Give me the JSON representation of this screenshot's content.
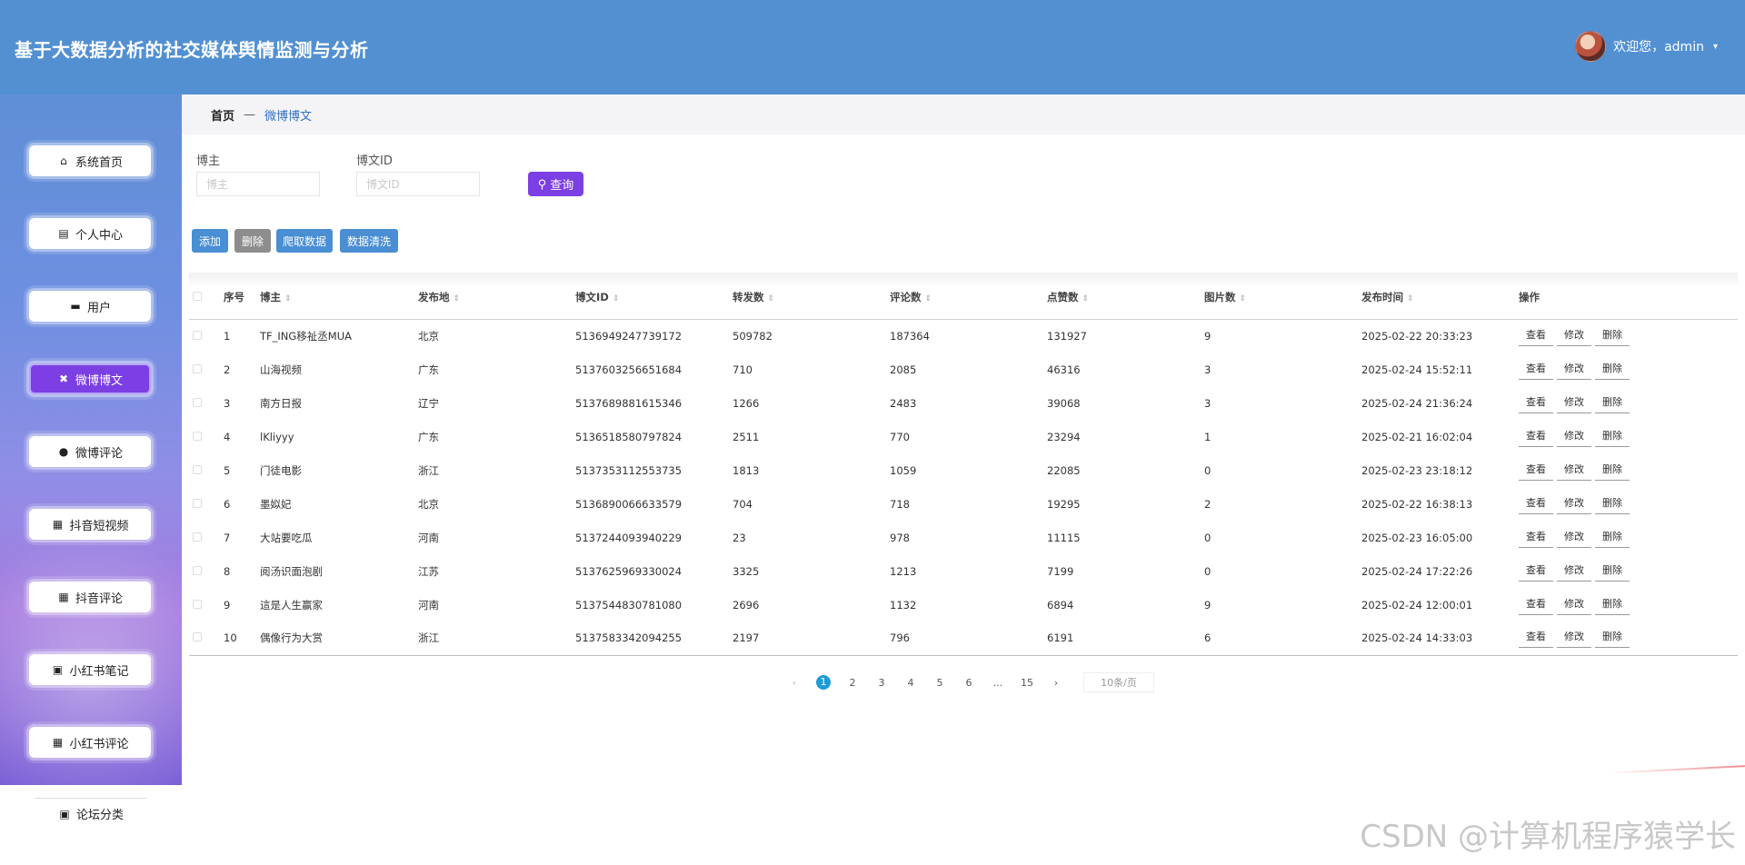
{
  "header": {
    "title": "基于大数据分析的社交媒体舆情监测与分析",
    "welcome": "欢迎您，admin",
    "caret": "▾"
  },
  "sidebar": {
    "items": [
      {
        "label": "系统首页",
        "icon": "⌂",
        "icon_name": "home-icon"
      },
      {
        "label": "个人中心",
        "icon": "▤",
        "icon_name": "profile-icon"
      },
      {
        "label": "用户",
        "icon": "▬",
        "icon_name": "monitor-icon"
      },
      {
        "label": "微博博文",
        "icon": "✖",
        "icon_name": "video-icon"
      },
      {
        "label": "微博评论",
        "icon": "●",
        "icon_name": "user-icon"
      },
      {
        "label": "抖音短视频",
        "icon": "▦",
        "icon_name": "grid-icon"
      },
      {
        "label": "抖音评论",
        "icon": "▦",
        "icon_name": "grid-icon"
      },
      {
        "label": "小红书笔记",
        "icon": "▣",
        "icon_name": "clipboard-icon"
      },
      {
        "label": "小红书评论",
        "icon": "▦",
        "icon_name": "grid-icon"
      },
      {
        "label": "论坛分类",
        "icon": "▣",
        "icon_name": "clipboard-icon"
      }
    ],
    "active_index": 3
  },
  "breadcrumb": {
    "home": "首页",
    "sep": "—",
    "current": "微博博文"
  },
  "search": {
    "author_label": "博主",
    "author_placeholder": "博主",
    "id_label": "博文ID",
    "id_placeholder": "博文ID",
    "query_label": "查询",
    "query_icon": "⚲"
  },
  "actions": {
    "add": "添加",
    "delete": "删除",
    "crawl": "爬取数据",
    "clean": "数据清洗"
  },
  "table": {
    "columns": [
      "序号",
      "博主",
      "发布地",
      "博文ID",
      "转发数",
      "评论数",
      "点赞数",
      "图片数",
      "发布时间",
      "操作"
    ],
    "sort_glyph": "⇕",
    "rows": [
      {
        "no": "1",
        "author": "TF_ING移祉丞MUA",
        "location": "北京",
        "id": "5136949247739172",
        "reposts": "509782",
        "comments": "187364",
        "likes": "131927",
        "images": "9",
        "time": "2025-02-22 20:33:23"
      },
      {
        "no": "2",
        "author": "山海视频",
        "location": "广东",
        "id": "5137603256651684",
        "reposts": "710",
        "comments": "2085",
        "likes": "46316",
        "images": "3",
        "time": "2025-02-24 15:52:11"
      },
      {
        "no": "3",
        "author": "南方日报",
        "location": "辽宁",
        "id": "5137689881615346",
        "reposts": "1266",
        "comments": "2483",
        "likes": "39068",
        "images": "3",
        "time": "2025-02-24 21:36:24"
      },
      {
        "no": "4",
        "author": "lKliyyy",
        "location": "广东",
        "id": "5136518580797824",
        "reposts": "2511",
        "comments": "770",
        "likes": "23294",
        "images": "1",
        "time": "2025-02-21 16:02:04"
      },
      {
        "no": "5",
        "author": "门徒电影",
        "location": "浙江",
        "id": "5137353112553735",
        "reposts": "1813",
        "comments": "1059",
        "likes": "22085",
        "images": "0",
        "time": "2025-02-23 23:18:12"
      },
      {
        "no": "6",
        "author": "墨姒妃",
        "location": "北京",
        "id": "5136890066633579",
        "reposts": "704",
        "comments": "718",
        "likes": "19295",
        "images": "2",
        "time": "2025-02-22 16:38:13"
      },
      {
        "no": "7",
        "author": "大站要吃瓜",
        "location": "河南",
        "id": "5137244093940229",
        "reposts": "23",
        "comments": "978",
        "likes": "11115",
        "images": "0",
        "time": "2025-02-23 16:05:00"
      },
      {
        "no": "8",
        "author": "阅汤识面泡剧",
        "location": "江苏",
        "id": "5137625969330024",
        "reposts": "3325",
        "comments": "1213",
        "likes": "7199",
        "images": "0",
        "time": "2025-02-24 17:22:26"
      },
      {
        "no": "9",
        "author": "這是人生赢家",
        "location": "河南",
        "id": "5137544830781080",
        "reposts": "2696",
        "comments": "1132",
        "likes": "6894",
        "images": "9",
        "time": "2025-02-24 12:00:01"
      },
      {
        "no": "10",
        "author": "偶像行为大赏",
        "location": "浙江",
        "id": "5137583342094255",
        "reposts": "2197",
        "comments": "796",
        "likes": "6191",
        "images": "6",
        "time": "2025-02-24 14:33:03"
      }
    ],
    "ops": {
      "view": "查看",
      "edit": "修改",
      "delete": "删除"
    }
  },
  "pagination": {
    "prev": "‹",
    "next": "›",
    "pages": [
      "1",
      "2",
      "3",
      "4",
      "5",
      "6",
      "...",
      "15"
    ],
    "current": "1",
    "page_size": "10条/页"
  },
  "watermark": "CSDN @计算机程序猿学长",
  "colors": {
    "header": "#5290d2",
    "active": "#7b3fe4",
    "primary_btn": "#4a8ed4",
    "page_active": "#1e9bd8"
  }
}
